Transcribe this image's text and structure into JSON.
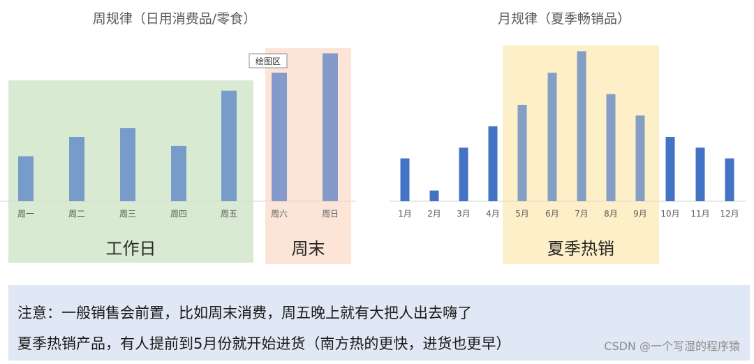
{
  "chart_data": [
    {
      "type": "bar",
      "title": "周规律（日用消费品/零食）",
      "categories": [
        "周一",
        "周二",
        "周三",
        "周四",
        "周五",
        "周六",
        "周日"
      ],
      "values": [
        35,
        50,
        57,
        43,
        86,
        100,
        115
      ],
      "ylim": [
        0,
        125
      ],
      "color": "#4472c4",
      "highlights": [
        {
          "label": "工作日",
          "from": "周一",
          "to": "周五",
          "color": "#d9ead3"
        },
        {
          "label": "周末",
          "from": "周六",
          "to": "周日",
          "color": "#fce5d8"
        }
      ],
      "tooltip": "绘图区"
    },
    {
      "type": "bar",
      "title": "月规律（夏季畅销品）",
      "categories": [
        "1月",
        "2月",
        "3月",
        "4月",
        "5月",
        "6月",
        "7月",
        "8月",
        "9月",
        "10月",
        "11月",
        "12月"
      ],
      "values": [
        40,
        10,
        50,
        70,
        90,
        120,
        140,
        100,
        80,
        60,
        50,
        40
      ],
      "ylim": [
        0,
        150
      ],
      "color": "#4472c4",
      "highlights": [
        {
          "label": "夏季热销",
          "from": "5月",
          "to": "9月",
          "color": "#fdf0c8"
        }
      ]
    }
  ],
  "note": {
    "line1": "注意：一般销售会前置，比如周末消费，周五晚上就有大把人出去嗨了",
    "line2": "夏季热销产品，有人提前到5月份就开始进货（南方热的更快，进货也更早）"
  },
  "watermark": "CSDN @一个写湿的程序猿"
}
